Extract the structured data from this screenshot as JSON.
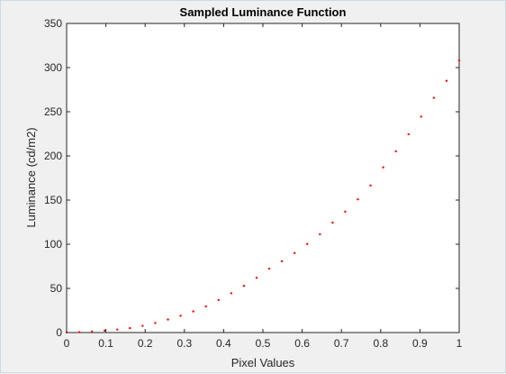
{
  "chart_data": {
    "type": "scatter",
    "title": "Sampled Luminance Function",
    "xlabel": "Pixel Values",
    "ylabel": "Luminance (cd/m2)",
    "xlim": [
      0,
      1
    ],
    "ylim": [
      0,
      350
    ],
    "xticks": [
      0,
      0.1,
      0.2,
      0.3,
      0.4,
      0.5,
      0.6,
      0.7,
      0.8,
      0.9,
      1
    ],
    "xtick_labels": [
      "0",
      "0.1",
      "0.2",
      "0.3",
      "0.4",
      "0.5",
      "0.6",
      "0.7",
      "0.8",
      "0.9",
      "1"
    ],
    "yticks": [
      0,
      50,
      100,
      150,
      200,
      250,
      300,
      350
    ],
    "ytick_labels": [
      "0",
      "50",
      "100",
      "150",
      "200",
      "250",
      "300",
      "350"
    ],
    "grid": false,
    "marker_color": "#ff0000",
    "axes_color": "#262626",
    "plot_background": "#ffffff",
    "figure_background": "#f0f0f0",
    "series": [
      {
        "x": [
          0,
          0.0323,
          0.0645,
          0.0968,
          0.129,
          0.1613,
          0.1935,
          0.2258,
          0.2581,
          0.2903,
          0.3226,
          0.3548,
          0.3871,
          0.4194,
          0.4516,
          0.4839,
          0.5161,
          0.5484,
          0.5806,
          0.6129,
          0.6452,
          0.6774,
          0.7097,
          0.7419,
          0.7742,
          0.8065,
          0.8387,
          0.871,
          0.9032,
          0.9355,
          0.9677,
          1
        ],
        "y": [
          0.2,
          0.4,
          1.1,
          2.2,
          3.4,
          5.0,
          7.6,
          10.8,
          14.7,
          19.1,
          23.9,
          29.6,
          36.8,
          44.5,
          52.8,
          62.0,
          72.3,
          80.7,
          90.0,
          100.3,
          111.3,
          124.5,
          136.9,
          150.8,
          166.5,
          187.0,
          205.2,
          224.5,
          244.5,
          265.8,
          285.0,
          308.0
        ]
      }
    ]
  }
}
